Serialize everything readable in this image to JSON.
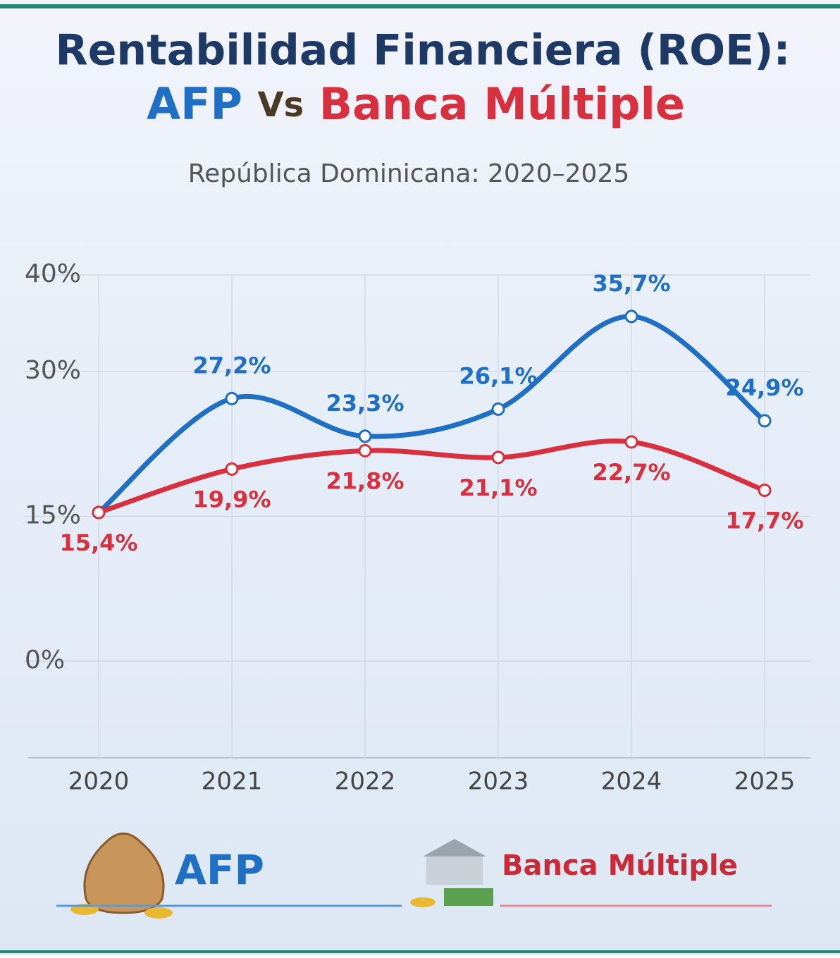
{
  "chart_data": {
    "type": "line",
    "title": "Rentabilidad Financiera (ROE):",
    "title_parts": [
      "AFP",
      "Vs",
      "Banca Múltiple"
    ],
    "subtitle": "República Dominicana: 2020–2025",
    "categories": [
      "2020",
      "2021",
      "2022",
      "2023",
      "2024",
      "2025"
    ],
    "series": [
      {
        "name": "AFP",
        "color": "#1f6fc4",
        "values": [
          15.4,
          27.2,
          23.3,
          26.1,
          35.7,
          24.9
        ],
        "value_labels": [
          null,
          "27,2%",
          "23,3%",
          "26,1%",
          "35,7%",
          "24,9%"
        ]
      },
      {
        "name": "Banca Múltiple",
        "color": "#d8303f",
        "values": [
          15.4,
          19.9,
          21.8,
          21.1,
          22.7,
          17.7
        ],
        "value_labels": [
          "15,4%",
          "19,9%",
          "21,8%",
          "21,1%",
          "22,7%",
          "17,7%"
        ]
      }
    ],
    "ylim": [
      -10,
      40
    ],
    "yticks": [
      {
        "value": 0,
        "label": "0%"
      },
      {
        "value": 15,
        "label": "15%"
      },
      {
        "value": 30,
        "label": "30%"
      },
      {
        "value": 40,
        "label": "40%"
      }
    ],
    "grid": true
  }
}
